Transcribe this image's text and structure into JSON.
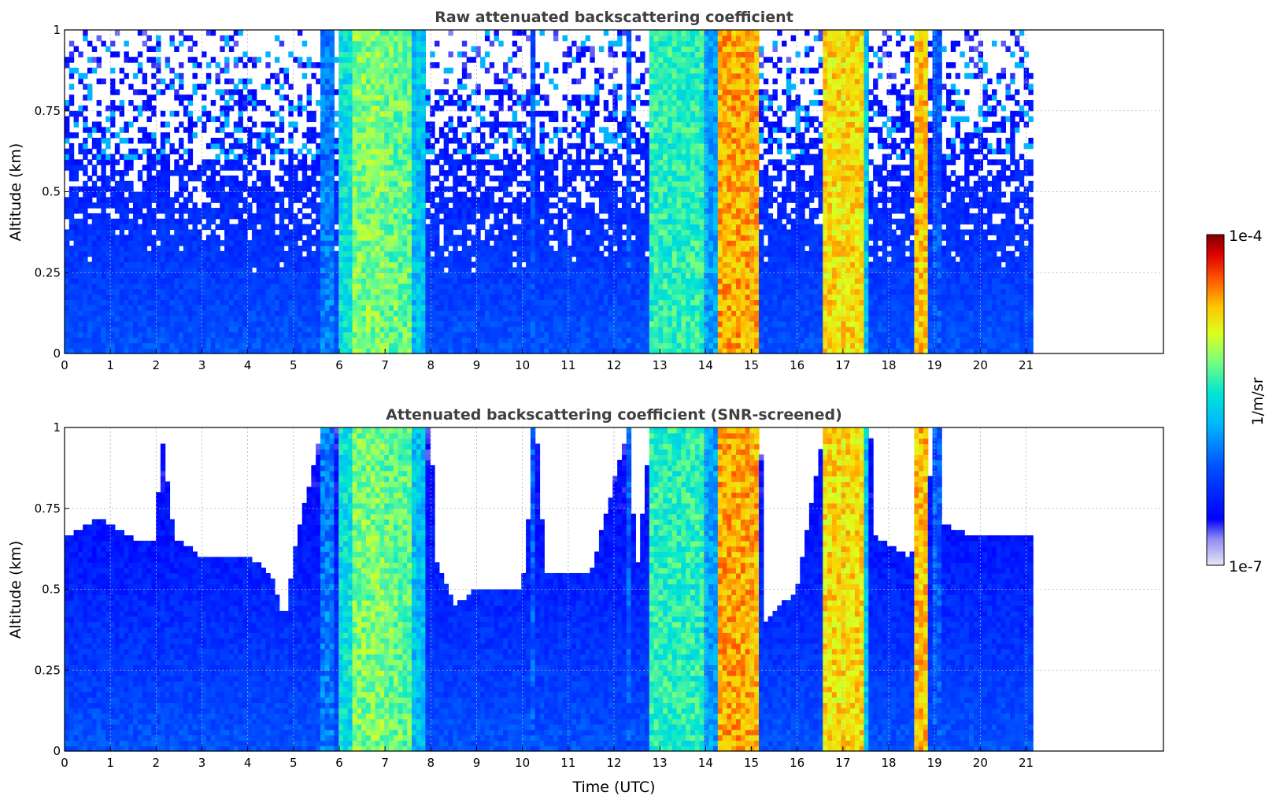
{
  "chart_data": [
    {
      "type": "heatmap",
      "title": "Raw attenuated backscattering coefficient",
      "xlabel": "",
      "ylabel": "Altitude (km)",
      "xlim": [
        0,
        24
      ],
      "ylim": [
        0,
        1
      ],
      "x_ticks": [
        "0",
        "1",
        "2",
        "3",
        "4",
        "5",
        "6",
        "7",
        "8",
        "9",
        "10",
        "11",
        "12",
        "13",
        "14",
        "15",
        "16",
        "17",
        "18",
        "19",
        "20",
        "21"
      ],
      "y_ticks": [
        "0",
        "0.25",
        "0.5",
        "0.75",
        "1"
      ],
      "grid": true,
      "data_extent_hours": [
        0,
        21.15
      ],
      "colorbar": {
        "label": "1/m/sr",
        "min_label": "1e-7",
        "max_label": "1e-4",
        "scale": "log"
      },
      "cloud_columns": [
        {
          "start": 5.6,
          "end": 5.9,
          "level": 0.35
        },
        {
          "start": 6.0,
          "end": 6.3,
          "level": 0.5
        },
        {
          "start": 6.3,
          "end": 7.0,
          "level": 0.62
        },
        {
          "start": 7.0,
          "end": 7.6,
          "level": 0.6
        },
        {
          "start": 7.6,
          "end": 7.9,
          "level": 0.45
        },
        {
          "start": 10.2,
          "end": 10.3,
          "level": 0.3
        },
        {
          "start": 12.3,
          "end": 12.4,
          "level": 0.3
        },
        {
          "start": 12.8,
          "end": 13.3,
          "level": 0.55
        },
        {
          "start": 13.3,
          "end": 14.0,
          "level": 0.55
        },
        {
          "start": 14.0,
          "end": 14.3,
          "level": 0.4
        },
        {
          "start": 14.3,
          "end": 15.2,
          "level": 0.8
        },
        {
          "start": 16.6,
          "end": 17.5,
          "level": 0.75
        },
        {
          "start": 17.5,
          "end": 17.6,
          "level": 0.45
        },
        {
          "start": 18.6,
          "end": 18.9,
          "level": 0.78
        },
        {
          "start": 19.0,
          "end": 19.2,
          "level": 0.3
        }
      ]
    },
    {
      "type": "heatmap",
      "title": "Attenuated backscattering coefficient (SNR-screened)",
      "xlabel": "Time (UTC)",
      "ylabel": "Altitude (km)",
      "xlim": [
        0,
        24
      ],
      "ylim": [
        0,
        1
      ],
      "x_ticks": [
        "0",
        "1",
        "2",
        "3",
        "4",
        "5",
        "6",
        "7",
        "8",
        "9",
        "10",
        "11",
        "12",
        "13",
        "14",
        "15",
        "16",
        "17",
        "18",
        "19",
        "20",
        "21"
      ],
      "y_ticks": [
        "0",
        "0.25",
        "0.5",
        "0.75",
        "1"
      ],
      "grid": true,
      "data_extent_hours": [
        0,
        21.15
      ],
      "screened_top_km": [
        [
          0,
          0.66
        ],
        [
          0.8,
          0.72
        ],
        [
          1.5,
          0.66
        ],
        [
          2.0,
          0.64
        ],
        [
          2.1,
          1.0
        ],
        [
          2.4,
          0.66
        ],
        [
          3.0,
          0.6
        ],
        [
          4.0,
          0.6
        ],
        [
          4.5,
          0.55
        ],
        [
          4.8,
          0.4
        ],
        [
          5.0,
          0.6
        ],
        [
          5.6,
          1.0
        ],
        [
          8.0,
          1.0
        ],
        [
          8.1,
          0.6
        ],
        [
          8.5,
          0.45
        ],
        [
          9.0,
          0.5
        ],
        [
          10.0,
          0.5
        ],
        [
          10.3,
          1.0
        ],
        [
          10.5,
          0.55
        ],
        [
          11.5,
          0.55
        ],
        [
          12.3,
          1.0
        ],
        [
          12.5,
          0.55
        ],
        [
          12.8,
          1.0
        ],
        [
          15.2,
          1.0
        ],
        [
          15.3,
          0.4
        ],
        [
          16.0,
          0.5
        ],
        [
          16.6,
          1.0
        ],
        [
          17.6,
          1.0
        ],
        [
          17.7,
          0.66
        ],
        [
          18.5,
          0.6
        ],
        [
          18.6,
          1.0
        ],
        [
          19.2,
          0.7
        ],
        [
          20.0,
          0.66
        ],
        [
          21.15,
          0.66
        ]
      ]
    }
  ]
}
